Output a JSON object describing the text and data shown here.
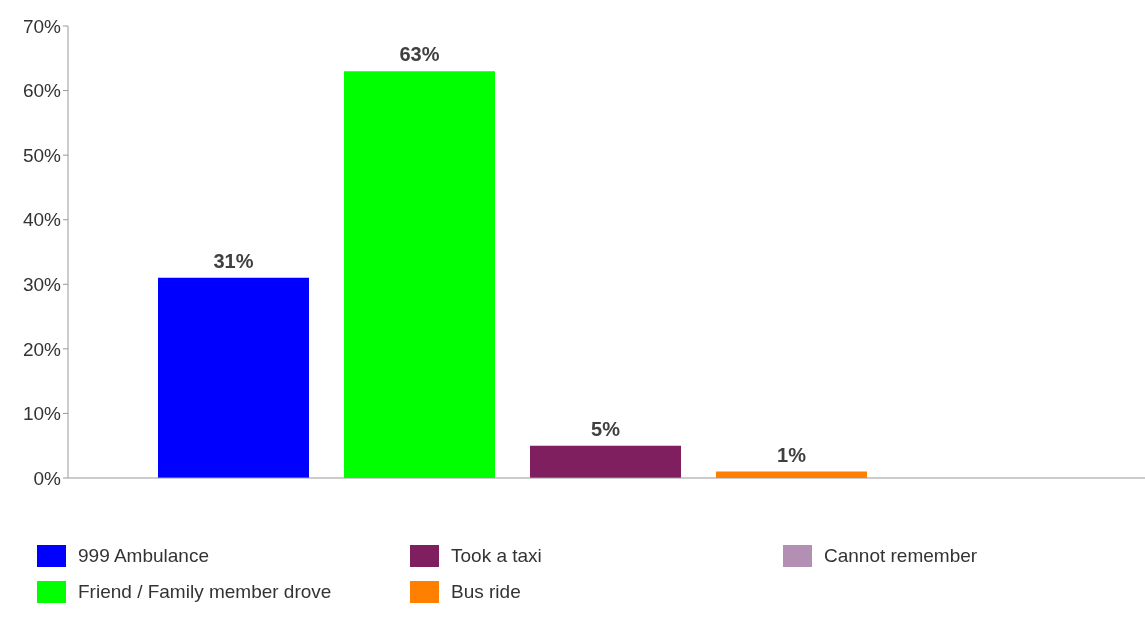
{
  "chart_data": {
    "type": "bar",
    "categories": [
      null
    ],
    "series": [
      {
        "name": "999 Ambulance",
        "color": "#0000ff",
        "values": [
          31
        ],
        "value_labels": [
          "31%"
        ]
      },
      {
        "name": "Friend / Family member drove",
        "color": "#00ff00",
        "values": [
          63
        ],
        "value_labels": [
          "63%"
        ]
      },
      {
        "name": "Took a taxi",
        "color": "#7f1f5f",
        "values": [
          5
        ],
        "value_labels": [
          "5%"
        ]
      },
      {
        "name": "Bus ride",
        "color": "#ff7f00",
        "values": [
          1
        ],
        "value_labels": [
          "1%"
        ]
      },
      {
        "name": "Cannot remember",
        "color": "#b38fb3",
        "values": [
          null
        ],
        "value_labels": [
          null
        ]
      }
    ],
    "ylim": [
      0,
      70
    ],
    "yticks": [
      {
        "value": 0,
        "label": "0%"
      },
      {
        "value": 10,
        "label": "10%"
      },
      {
        "value": 20,
        "label": "20%"
      },
      {
        "value": 30,
        "label": "30%"
      },
      {
        "value": 40,
        "label": "40%"
      },
      {
        "value": 50,
        "label": "50%"
      },
      {
        "value": 60,
        "label": "60%"
      },
      {
        "value": 70,
        "label": "70%"
      }
    ],
    "grid": false,
    "legend": "bottom"
  }
}
